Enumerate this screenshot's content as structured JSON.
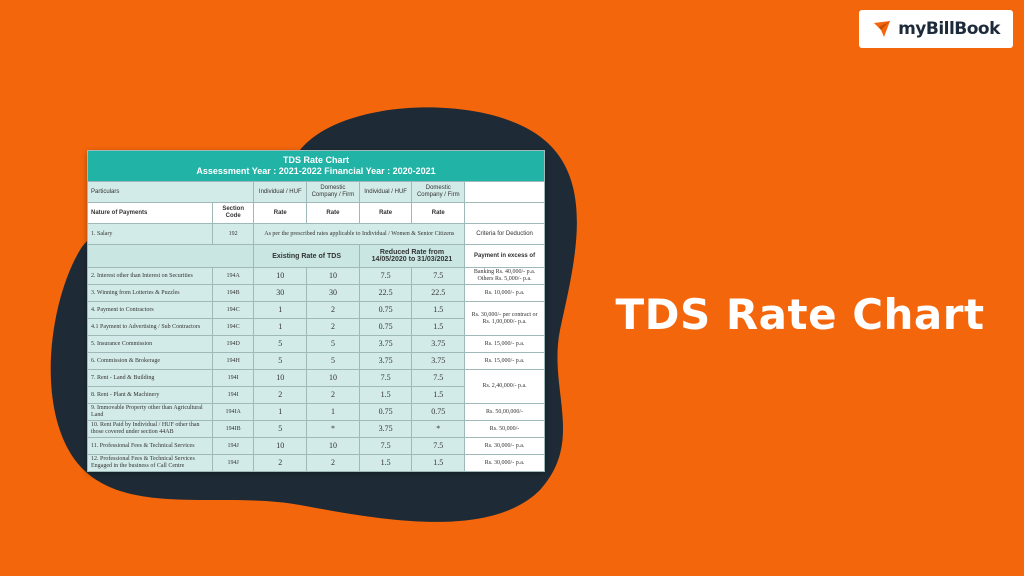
{
  "logo": {
    "text": "myBillBook"
  },
  "heading": "TDS Rate Chart",
  "table": {
    "title": "TDS Rate Chart",
    "subtitle": "Assessment Year : 2021-2022 Financial Year : 2020-2021",
    "particulars": "Particulars",
    "group_headers": [
      "Individual / HUF",
      "Domestic Company / Firm",
      "Individual / HUF",
      "Domestic Company / Firm"
    ],
    "columns": [
      "Nature of Payments",
      "Section Code",
      "Rate",
      "Rate",
      "Rate",
      "Rate"
    ],
    "salary": [
      "1. Salary",
      "192",
      "As per the prescribed rates applicable to Individual / Women & Senior Citizens",
      "Criteria for Deduction"
    ],
    "band": [
      "Existing Rate of TDS",
      "Reduced Rate from 14/05/2020 to 31/03/2021",
      "Payment in excess of"
    ],
    "rows": [
      [
        "2. Interest other than Interest on Securities",
        "194A",
        "10",
        "10",
        "7.5",
        "7.5",
        "Banking Rs. 40,000/- p.a. Others Rs. 5,000/- p.a."
      ],
      [
        "3. Winning from Lotteries & Puzzles",
        "194B",
        "30",
        "30",
        "22.5",
        "22.5",
        "Rs. 10,000/- p.a."
      ],
      [
        "4. Payment to Contractors",
        "194C",
        "1",
        "2",
        "0.75",
        "1.5",
        "Rs. 30,000/- per contract or Rs. 1,00,000/- p.a."
      ],
      [
        "4.1 Payment to Advertising / Sub Contractors",
        "194C",
        "1",
        "2",
        "0.75",
        "1.5"
      ],
      [
        "5. Insurance Commission",
        "194D",
        "5",
        "5",
        "3.75",
        "3.75",
        "Rs. 15,000/- p.a."
      ],
      [
        "6. Commission & Brokerage",
        "194H",
        "5",
        "5",
        "3.75",
        "3.75",
        "Rs. 15,000/- p.a."
      ],
      [
        "7. Rent - Land & Building",
        "194I",
        "10",
        "10",
        "7.5",
        "7.5",
        "Rs. 2,40,000/- p.a."
      ],
      [
        "8. Rent - Plant & Machinery",
        "194I",
        "2",
        "2",
        "1.5",
        "1.5"
      ],
      [
        "9. Immovable Property other than Agricultural Land",
        "194IA",
        "1",
        "1",
        "0.75",
        "0.75",
        "Rs. 50,00,000/-"
      ],
      [
        "10. Rent Paid by Individual / HUF other than those covered under section 44AB",
        "194IB",
        "5",
        "*",
        "3.75",
        "*",
        "Rs. 50,000/-"
      ],
      [
        "11. Professional Fees & Technical Services",
        "194J",
        "10",
        "10",
        "7.5",
        "7.5",
        "Rs. 30,000/- p.a."
      ],
      [
        "12. Professional Fees & Technical Services Engaged in the business of Call Centre",
        "194J",
        "2",
        "2",
        "1.5",
        "1.5",
        "Rs. 30,000/- p.a."
      ]
    ]
  }
}
